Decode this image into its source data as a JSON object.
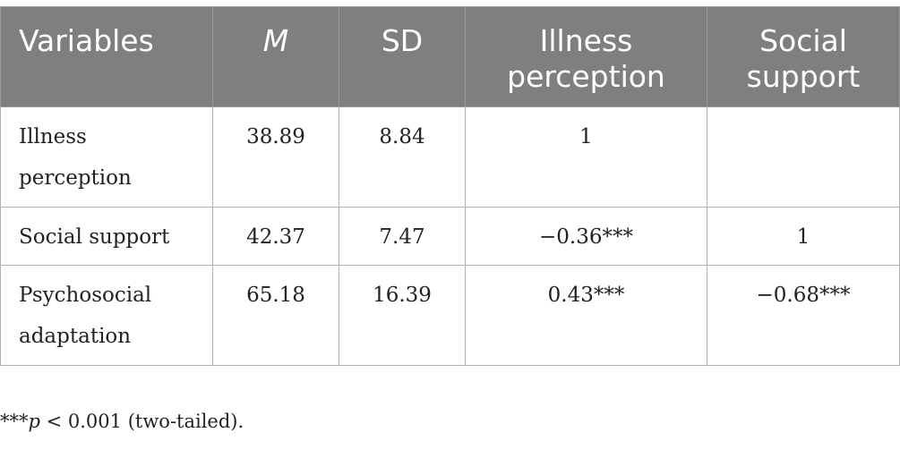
{
  "table": {
    "headers": [
      {
        "label": "Variables"
      },
      {
        "label": "M"
      },
      {
        "label": "SD"
      },
      {
        "label": "Illness perception"
      },
      {
        "label": "Social support"
      }
    ],
    "rows": [
      {
        "variable": "Illness perception",
        "m": "38.89",
        "sd": "8.84",
        "illness_perception": "1",
        "social_support": ""
      },
      {
        "variable": "Social support",
        "m": "42.37",
        "sd": "7.47",
        "illness_perception": "−0.36***",
        "social_support": "1"
      },
      {
        "variable": "Psychosocial adaptation",
        "m": "65.18",
        "sd": "16.39",
        "illness_perception": "0.43***",
        "social_support": "−0.68***"
      }
    ]
  },
  "footnote": {
    "stars": "***",
    "p": "p",
    "rest": " < 0.001 (two-tailed)."
  },
  "colors": {
    "header_background": "#7f7f7f",
    "header_text": "#ffffff",
    "border": "#b0b0b0"
  }
}
